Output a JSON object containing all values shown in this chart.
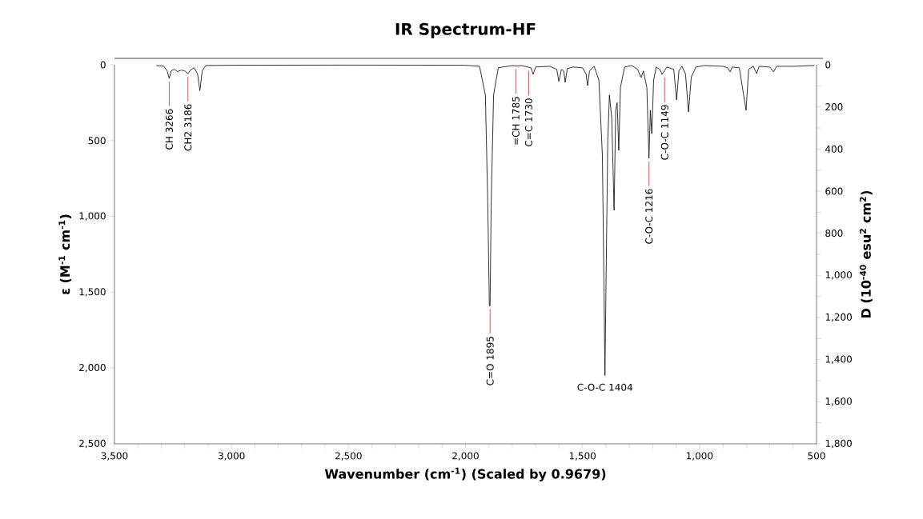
{
  "chart_data": {
    "type": "line",
    "title": "IR Spectrum-HF",
    "xlabel": "Wavenumber (cm$^{-1}$) (Scaled by 0.9679)",
    "ylabel": "ε (M$^{-1}$ cm$^{-1}$)",
    "y2label": "D (10$^{-40}$ esu$^{2}$ cm$^{2}$)",
    "xlim": [
      3500,
      500
    ],
    "ylim": [
      2500,
      0
    ],
    "y2lim": [
      1800,
      0
    ],
    "xticks": [
      {
        "value": 3500,
        "label": "3,500"
      },
      {
        "value": 3400,
        "label": null
      },
      {
        "value": 3300,
        "label": null
      },
      {
        "value": 3200,
        "label": null
      },
      {
        "value": 3100,
        "label": null
      },
      {
        "value": 3000,
        "label": "3,000"
      },
      {
        "value": 2900,
        "label": null
      },
      {
        "value": 2800,
        "label": null
      },
      {
        "value": 2700,
        "label": null
      },
      {
        "value": 2600,
        "label": null
      },
      {
        "value": 2500,
        "label": "2,500"
      },
      {
        "value": 2400,
        "label": null
      },
      {
        "value": 2300,
        "label": null
      },
      {
        "value": 2200,
        "label": null
      },
      {
        "value": 2100,
        "label": null
      },
      {
        "value": 2000,
        "label": "2,000"
      },
      {
        "value": 1900,
        "label": null
      },
      {
        "value": 1800,
        "label": null
      },
      {
        "value": 1700,
        "label": null
      },
      {
        "value": 1600,
        "label": null
      },
      {
        "value": 1500,
        "label": "1,500"
      },
      {
        "value": 1400,
        "label": null
      },
      {
        "value": 1300,
        "label": null
      },
      {
        "value": 1200,
        "label": null
      },
      {
        "value": 1100,
        "label": null
      },
      {
        "value": 1000,
        "label": "1,000"
      },
      {
        "value": 900,
        "label": null
      },
      {
        "value": 800,
        "label": null
      },
      {
        "value": 700,
        "label": null
      },
      {
        "value": 600,
        "label": null
      },
      {
        "value": 500,
        "label": "500"
      }
    ],
    "yticks": [
      0,
      500,
      {
        "value": 1000,
        "label": "1,000"
      },
      {
        "value": 1500,
        "label": "1,500"
      },
      {
        "value": 2000,
        "label": "2,000"
      },
      {
        "value": 2500,
        "label": "2,500"
      }
    ],
    "y2ticks": [
      0,
      {
        "value": 100,
        "label": null
      },
      200,
      {
        "value": 300,
        "label": null
      },
      400,
      {
        "value": 500,
        "label": null
      },
      600,
      {
        "value": 700,
        "label": null
      },
      800,
      {
        "value": 900,
        "label": null
      },
      {
        "value": 1000,
        "label": "1,000"
      },
      {
        "value": 1100,
        "label": null
      },
      {
        "value": 1200,
        "label": "1,200"
      },
      {
        "value": 1300,
        "label": null
      },
      {
        "value": 1400,
        "label": "1,400"
      },
      {
        "value": 1500,
        "label": null
      },
      {
        "value": 1600,
        "label": "1,600"
      },
      {
        "value": 1700,
        "label": null
      },
      {
        "value": 1800,
        "label": "1,800"
      }
    ],
    "marker": "none",
    "line_style": "solid",
    "grid": false,
    "series": [
      {
        "color": "#000000",
        "x": [
          3320,
          3290,
          3275,
          3266,
          3258,
          3245,
          3230,
          3215,
          3200,
          3186,
          3175,
          3160,
          3145,
          3135,
          3125,
          3110,
          3000,
          2500,
          2000,
          1940,
          1915,
          1905,
          1898,
          1895,
          1890,
          1880,
          1860,
          1800,
          1785,
          1760,
          1720,
          1711,
          1700,
          1640,
          1610,
          1601,
          1590,
          1580,
          1574,
          1565,
          1540,
          1500,
          1485,
          1478,
          1470,
          1450,
          1430,
          1415,
          1408,
          1404,
          1400,
          1392,
          1385,
          1375,
          1365,
          1358,
          1352,
          1345,
          1338,
          1320,
          1290,
          1265,
          1249,
          1240,
          1225,
          1216,
          1210,
          1204,
          1196,
          1185,
          1170,
          1160,
          1150,
          1140,
          1110,
          1098,
          1088,
          1075,
          1060,
          1047,
          1035,
          1015,
          980,
          900,
          880,
          869,
          860,
          830,
          801,
          790,
          770,
          756,
          745,
          700,
          684,
          670,
          600,
          520,
          510
        ],
        "values": [
          5,
          8,
          40,
          90,
          40,
          30,
          45,
          35,
          40,
          58,
          35,
          20,
          60,
          170,
          40,
          5,
          3,
          2,
          3,
          10,
          200,
          900,
          1590,
          1590,
          900,
          200,
          20,
          5,
          8,
          5,
          20,
          63,
          15,
          10,
          30,
          110,
          30,
          40,
          116,
          25,
          15,
          20,
          60,
          137,
          40,
          10,
          100,
          600,
          1500,
          2050,
          1500,
          500,
          200,
          350,
          960,
          300,
          250,
          565,
          150,
          15,
          5,
          30,
          84,
          40,
          150,
          617,
          300,
          455,
          100,
          15,
          30,
          63,
          40,
          15,
          30,
          232,
          40,
          10,
          60,
          311,
          80,
          15,
          5,
          10,
          20,
          47,
          15,
          20,
          300,
          30,
          10,
          58,
          10,
          15,
          47,
          10,
          10,
          5,
          5
        ]
      }
    ],
    "annotations": [
      {
        "text": "CH  3266",
        "x": 3266,
        "y": 90
      },
      {
        "text": "CH2  3186",
        "x": 3186,
        "y": 58
      },
      {
        "text": "C=O  1895",
        "x": 1895,
        "y": 1590
      },
      {
        "text": "=CH 1785",
        "x": 1785,
        "y": 8
      },
      {
        "text": "C=C  1730",
        "x": 1730,
        "y": 20
      },
      {
        "text": "C-O-C 1404",
        "x": 1404,
        "y": 2050
      },
      {
        "text": "C-O-C 1216",
        "x": 1216,
        "y": 617
      },
      {
        "text": "C-O-C 1149",
        "x": 1149,
        "y": 63
      }
    ]
  }
}
